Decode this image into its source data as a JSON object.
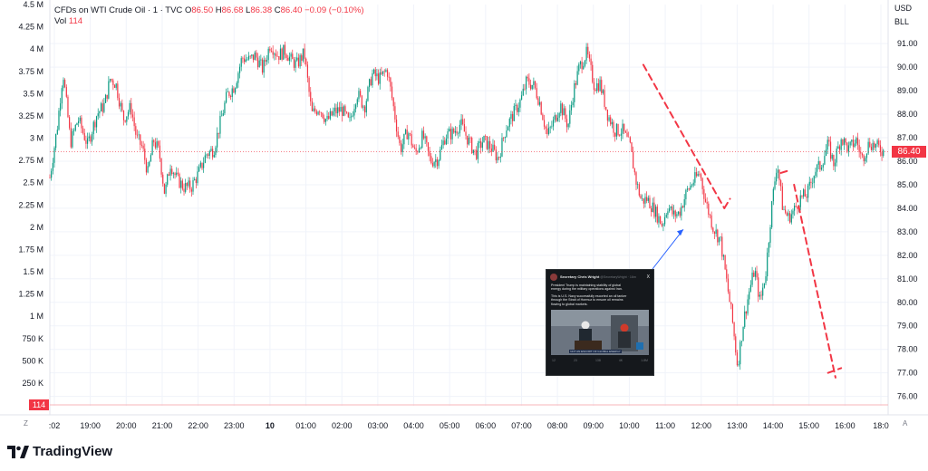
{
  "legend": {
    "title": "CFDs on WTI Crude Oil · 1 · TVC",
    "o_label": "O",
    "o_value": "86.50",
    "h_label": "H",
    "h_value": "86.68",
    "l_label": "L",
    "l_value": "86.38",
    "c_label": "C",
    "c_value": "86.40",
    "change": "−0.09 (−0.10%)",
    "vol_label": "Vol",
    "vol_value": "114"
  },
  "currency": "USD",
  "unit": "BLL",
  "last_price_tag": "86.40",
  "volume_tag": "114",
  "z_button": "Z",
  "a_button": "A",
  "brand": "TradingView",
  "colors": {
    "up": "#089981",
    "down": "#f23645",
    "annotation": "#f23645",
    "arrow": "#2962ff",
    "grid": "#f0f3fa"
  },
  "tweet": {
    "author": "Secretary Chris Wright",
    "handle": "@SecretaryWright · 16m",
    "close": "X",
    "lines": [
      "President Trump is maintaining stability of global",
      "energy during the military operations against Iran.",
      "",
      "This is U.S. Navy successfully escorted an oil tanker",
      "through the Strait of Hormuz to ensure oil remains",
      "flowing to global markets."
    ],
    "caption": "NOT AN ESCORT OF GLOBAL ENERGY",
    "actions": [
      "12",
      "23",
      "138",
      "4K",
      "1.8M"
    ]
  },
  "chart_data": {
    "type": "candlestick",
    "title": "CFDs on WTI Crude Oil · 1 · TVC",
    "x_ticks": [
      ":02",
      "19:00",
      "20:00",
      "21:00",
      "22:00",
      "23:00",
      "10",
      "01:00",
      "02:00",
      "03:00",
      "04:00",
      "05:00",
      "06:00",
      "07:00",
      "08:00",
      "09:00",
      "10:00",
      "11:00",
      "12:00",
      "13:00",
      "14:00",
      "15:00",
      "16:00",
      "18:0"
    ],
    "y_price_ticks": [
      "91.00",
      "90.00",
      "89.00",
      "88.00",
      "87.00",
      "86.00",
      "85.00",
      "84.00",
      "83.00",
      "82.00",
      "81.00",
      "80.00",
      "79.00",
      "78.00",
      "77.00",
      "76.00"
    ],
    "y_volume_ticks": [
      "4.5 M",
      "4.25 M",
      "4 M",
      "3.75 M",
      "3.5 M",
      "3.25 M",
      "3 M",
      "2.75 M",
      "2.5 M",
      "2.25 M",
      "2 M",
      "1.75 M",
      "1.5 M",
      "1.25 M",
      "1 M",
      "750 K",
      "500 K",
      "250 K"
    ],
    "price_range": [
      75.6,
      91.7
    ],
    "last_price": 86.4,
    "close_path": [
      [
        0,
        85.3
      ],
      [
        8,
        87.5
      ],
      [
        14,
        89.8
      ],
      [
        22,
        86.8
      ],
      [
        30,
        87.8
      ],
      [
        40,
        86.7
      ],
      [
        50,
        88.0
      ],
      [
        58,
        88.4
      ],
      [
        64,
        89.5
      ],
      [
        70,
        89.3
      ],
      [
        78,
        87.8
      ],
      [
        86,
        88.3
      ],
      [
        92,
        87.0
      ],
      [
        98,
        86.6
      ],
      [
        104,
        85.5
      ],
      [
        110,
        86.9
      ],
      [
        116,
        86.4
      ],
      [
        122,
        84.6
      ],
      [
        128,
        85.9
      ],
      [
        134,
        85.3
      ],
      [
        142,
        84.9
      ],
      [
        150,
        84.9
      ],
      [
        158,
        85.5
      ],
      [
        166,
        86.3
      ],
      [
        174,
        86.5
      ],
      [
        180,
        87.5
      ],
      [
        188,
        88.8
      ],
      [
        196,
        89.2
      ],
      [
        204,
        90.4
      ],
      [
        212,
        90.3
      ],
      [
        218,
        90.5
      ],
      [
        226,
        89.9
      ],
      [
        234,
        91.0
      ],
      [
        242,
        90.5
      ],
      [
        250,
        90.7
      ],
      [
        256,
        90.3
      ],
      [
        262,
        90.1
      ],
      [
        270,
        90.6
      ],
      [
        278,
        88.0
      ],
      [
        286,
        88.3
      ],
      [
        294,
        87.7
      ],
      [
        302,
        88.1
      ],
      [
        310,
        88.2
      ],
      [
        318,
        87.6
      ],
      [
        326,
        88.9
      ],
      [
        334,
        88.3
      ],
      [
        342,
        89.7
      ],
      [
        350,
        89.5
      ],
      [
        358,
        89.9
      ],
      [
        364,
        88.5
      ],
      [
        372,
        86.5
      ],
      [
        380,
        87.3
      ],
      [
        388,
        86.3
      ],
      [
        396,
        87.1
      ],
      [
        404,
        86.0
      ],
      [
        412,
        86.1
      ],
      [
        420,
        87.1
      ],
      [
        428,
        87.2
      ],
      [
        436,
        87.6
      ],
      [
        444,
        86.9
      ],
      [
        452,
        86.3
      ],
      [
        460,
        86.9
      ],
      [
        468,
        86.6
      ],
      [
        476,
        86.1
      ],
      [
        484,
        87.4
      ],
      [
        492,
        88.0
      ],
      [
        500,
        88.6
      ],
      [
        506,
        89.4
      ],
      [
        514,
        89.2
      ],
      [
        520,
        88.5
      ],
      [
        528,
        87.1
      ],
      [
        534,
        87.6
      ],
      [
        542,
        88.4
      ],
      [
        550,
        87.5
      ],
      [
        556,
        89.0
      ],
      [
        562,
        90.0
      ],
      [
        570,
        90.6
      ],
      [
        578,
        89.2
      ],
      [
        584,
        89.3
      ],
      [
        592,
        88.0
      ],
      [
        600,
        87.3
      ],
      [
        608,
        87.3
      ],
      [
        616,
        86.6
      ],
      [
        622,
        85.2
      ],
      [
        628,
        84.3
      ],
      [
        634,
        84.4
      ],
      [
        642,
        83.9
      ],
      [
        650,
        83.3
      ],
      [
        656,
        84.1
      ],
      [
        662,
        83.7
      ],
      [
        668,
        83.8
      ],
      [
        676,
        84.7
      ],
      [
        684,
        85.2
      ],
      [
        690,
        85.5
      ],
      [
        696,
        84.3
      ],
      [
        704,
        83.2
      ],
      [
        712,
        82.6
      ],
      [
        718,
        81.0
      ],
      [
        724,
        79.4
      ],
      [
        730,
        77.3
      ],
      [
        736,
        79.1
      ],
      [
        742,
        80.4
      ],
      [
        748,
        81.4
      ],
      [
        754,
        80.0
      ],
      [
        760,
        81.3
      ],
      [
        766,
        84.0
      ],
      [
        772,
        86.0
      ],
      [
        778,
        84.0
      ],
      [
        784,
        83.6
      ],
      [
        790,
        83.9
      ],
      [
        796,
        84.4
      ],
      [
        804,
        84.6
      ],
      [
        812,
        85.6
      ],
      [
        818,
        85.8
      ],
      [
        826,
        86.7
      ],
      [
        832,
        85.9
      ],
      [
        840,
        87.0
      ],
      [
        848,
        86.5
      ],
      [
        856,
        86.9
      ],
      [
        862,
        86.1
      ],
      [
        870,
        86.8
      ],
      [
        878,
        86.6
      ],
      [
        886,
        86.4
      ]
    ],
    "annotation_segments": [
      [
        [
          630,
          90.1
        ],
        [
          716,
          84.0
        ]
      ],
      [
        [
          716,
          84.0
        ],
        [
          722,
          84.4
        ]
      ],
      [
        [
          776,
          85.5
        ],
        [
          784,
          85.6
        ]
      ],
      [
        [
          790,
          85.0
        ],
        [
          834,
          76.8
        ]
      ],
      [
        [
          826,
          77.0
        ],
        [
          840,
          77.2
        ]
      ]
    ]
  }
}
